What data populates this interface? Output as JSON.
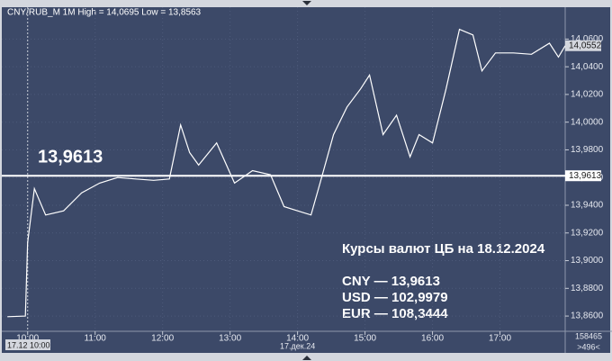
{
  "chart_data": {
    "type": "line",
    "title": "CNY/RUB_M 1M High = 14,0695 Low = 13,8563",
    "x": [
      582,
      598,
      600,
      606,
      616,
      632,
      648,
      664,
      680,
      696,
      712,
      726,
      736,
      744,
      752,
      768,
      784,
      800,
      816,
      828,
      840,
      852,
      860,
      872,
      884,
      896,
      904,
      916,
      928,
      940,
      948,
      960,
      972,
      984,
      996,
      1004,
      1016,
      1032,
      1048,
      1064,
      1072,
      1078
    ],
    "values": [
      13.8595,
      13.86,
      13.913,
      13.952,
      13.933,
      13.936,
      13.949,
      13.956,
      13.96,
      13.959,
      13.958,
      13.959,
      13.998,
      13.978,
      13.969,
      13.985,
      13.956,
      13.965,
      13.962,
      13.939,
      13.936,
      13.933,
      13.956,
      13.991,
      14.011,
      14.024,
      14.034,
      13.991,
      14.005,
      13.975,
      13.991,
      13.985,
      14.024,
      14.067,
      14.063,
      14.037,
      14.05,
      14.05,
      14.049,
      14.057,
      14.047,
      14.0552
    ],
    "color": "#ffffff",
    "xlim": [
      577,
      1078
    ],
    "ylim": [
      13.849,
      14.083
    ],
    "xticks": [
      {
        "value": 600,
        "label": "10:00"
      },
      {
        "value": 660,
        "label": "11:00"
      },
      {
        "value": 720,
        "label": "12:00"
      },
      {
        "value": 780,
        "label": "13:00"
      },
      {
        "value": 840,
        "label": "14:00"
      },
      {
        "value": 900,
        "label": "15:00"
      },
      {
        "value": 960,
        "label": "16:00"
      },
      {
        "value": 1020,
        "label": "17:00"
      }
    ],
    "yticks": [
      {
        "value": 14.06,
        "label": "14,0600"
      },
      {
        "value": 14.04,
        "label": "14,0400"
      },
      {
        "value": 14.02,
        "label": "14,0200"
      },
      {
        "value": 14.0,
        "label": "14,0000"
      },
      {
        "value": 13.98,
        "label": "13,9800"
      },
      {
        "value": 13.96,
        "label": "13,9600"
      },
      {
        "value": 13.94,
        "label": "13,9400"
      },
      {
        "value": 13.92,
        "label": "13,9200"
      },
      {
        "value": 13.9,
        "label": "13,9000"
      },
      {
        "value": 13.88,
        "label": "13,8800"
      },
      {
        "value": 13.86,
        "label": "13,8600"
      }
    ],
    "grid": true,
    "hline": {
      "value": 13.9613,
      "label": "13,9613"
    },
    "last_price": {
      "value": 14.0552,
      "label": "14,0552"
    },
    "crosshair": {
      "x": 600,
      "label": "17.12 10:00"
    },
    "date_label": {
      "x": 840,
      "label": "17.дек.24"
    },
    "annotations": [
      "Курсы валют ЦБ на 18.12.2024",
      "CNY — 13,9613",
      "USD — 102,9979",
      "EUR — 108,3444"
    ],
    "footer": [
      "158465",
      ">496<"
    ]
  }
}
